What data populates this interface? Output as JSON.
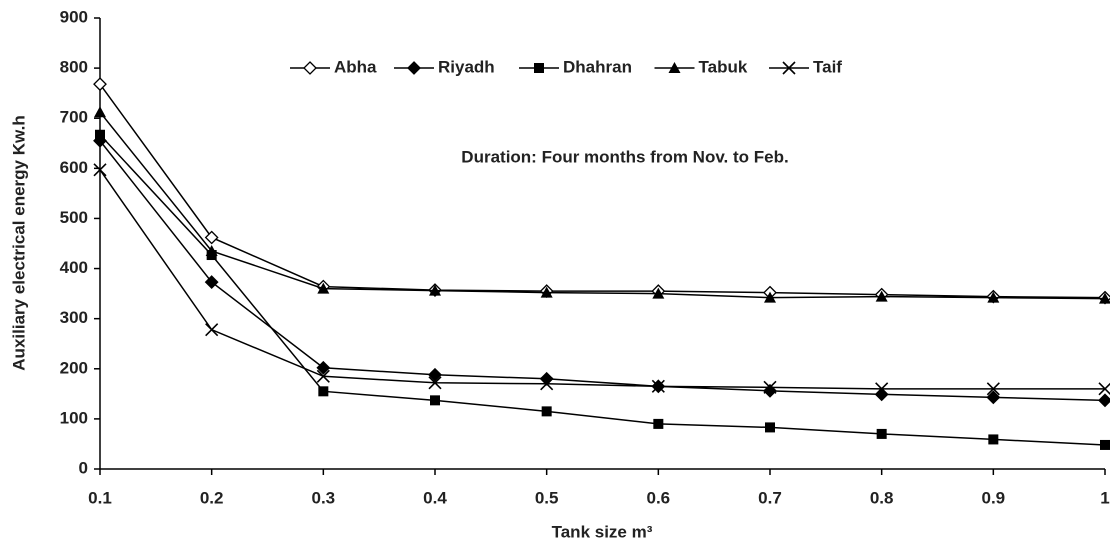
{
  "chart_data": {
    "type": "line",
    "annotation": "Duration: Four months from Nov. to Feb.",
    "xlabel": "Tank size m³",
    "ylabel": "Auxiliary electrical energy Kw.h",
    "x": [
      0.1,
      0.2,
      0.3,
      0.4,
      0.5,
      0.6,
      0.7,
      0.8,
      0.9,
      1
    ],
    "series": [
      {
        "name": "Abha",
        "color": "#000000",
        "marker": "diamond-open",
        "values": [
          768,
          462,
          364,
          357,
          355,
          355,
          352,
          348,
          344,
          342
        ]
      },
      {
        "name": "Riyadh",
        "color": "#000000",
        "marker": "diamond",
        "values": [
          655,
          373,
          202,
          188,
          180,
          165,
          156,
          149,
          143,
          137
        ]
      },
      {
        "name": "Dhahran",
        "color": "#000000",
        "marker": "square",
        "values": [
          667,
          427,
          155,
          137,
          115,
          90,
          83,
          70,
          59,
          48
        ]
      },
      {
        "name": "Tabuk",
        "color": "#000000",
        "marker": "triangle",
        "values": [
          712,
          435,
          360,
          356,
          352,
          350,
          342,
          344,
          342,
          340
        ]
      },
      {
        "name": "Taif",
        "color": "#000000",
        "marker": "x",
        "values": [
          597,
          278,
          185,
          172,
          170,
          165,
          163,
          160,
          160,
          160
        ]
      }
    ],
    "xlim": [
      0.1,
      1
    ],
    "xticks": [
      0.1,
      0.2,
      0.3,
      0.4,
      0.5,
      0.6,
      0.7,
      0.8,
      0.9,
      1
    ],
    "ylim": [
      0,
      900
    ],
    "yticks": [
      0,
      100,
      200,
      300,
      400,
      500,
      600,
      700,
      800,
      900
    ],
    "grid": false
  }
}
